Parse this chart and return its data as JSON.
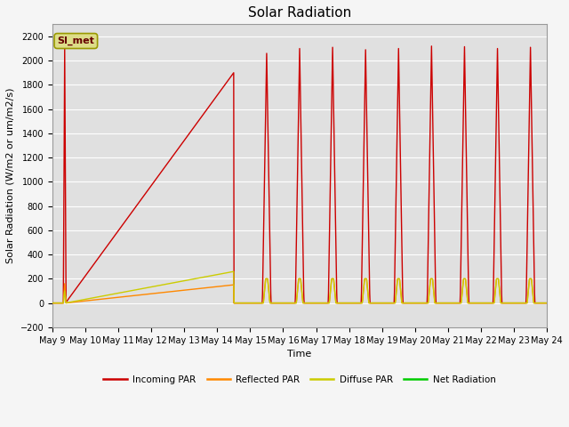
{
  "title": "Solar Radiation",
  "xlabel": "Time",
  "ylabel": "Solar Radiation (W/m2 or um/m2/s)",
  "ylim": [
    -200,
    2300
  ],
  "yticks": [
    -200,
    0,
    200,
    400,
    600,
    800,
    1000,
    1200,
    1400,
    1600,
    1800,
    2000,
    2200
  ],
  "x_tick_days": [
    9,
    10,
    11,
    12,
    13,
    14,
    15,
    16,
    17,
    18,
    19,
    20,
    21,
    22,
    23,
    24
  ],
  "colors": {
    "incoming": "#cc0000",
    "reflected": "#ff8800",
    "diffuse": "#cccc00",
    "net": "#00cc00"
  },
  "background_color": "#e0e0e0",
  "fig_background": "#f5f5f5",
  "legend_box_color": "#dddd88",
  "legend_box_text": "SI_met",
  "grid_color": "#ffffff",
  "line_width": 1.0,
  "title_fontsize": 11,
  "axis_fontsize": 8,
  "tick_fontsize": 7
}
